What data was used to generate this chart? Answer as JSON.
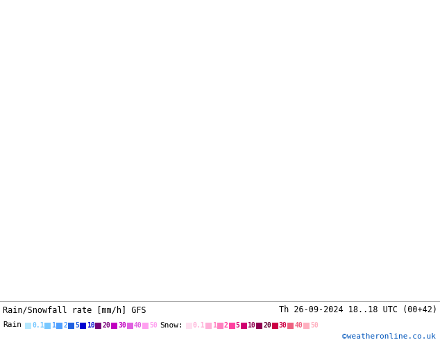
{
  "title_left": "Rain/Snowfall rate [mm/h] GFS",
  "title_right": "Th 26-09-2024 18..18 UTC (00+42)",
  "credit": "©weatheronline.co.uk",
  "rain_labels": [
    "0.1",
    "1",
    "2",
    "5",
    "10",
    "20",
    "30",
    "40",
    "50"
  ],
  "rain_swatch_colors": [
    "#b4e8ff",
    "#78c8ff",
    "#50a0ff",
    "#2060e0",
    "#0000d0",
    "#780078",
    "#c000c0",
    "#e060e0",
    "#ffa0f0"
  ],
  "rain_text_colors": [
    "#78c8ff",
    "#50a0ff",
    "#50a0ff",
    "#2060e0",
    "#0000d0",
    "#780078",
    "#c000c0",
    "#e060e0",
    "#ffa0f0"
  ],
  "snow_labels": [
    "0.1",
    "1",
    "2",
    "5",
    "10",
    "20",
    "30",
    "40",
    "50"
  ],
  "snow_swatch_colors": [
    "#ffe0f0",
    "#ffb0d8",
    "#ff80c0",
    "#ff40a0",
    "#d00070",
    "#900050",
    "#cc0044",
    "#ee6080",
    "#ffb0c0"
  ],
  "snow_text_colors": [
    "#ffb0d8",
    "#ff80c0",
    "#ff40a0",
    "#d00070",
    "#900050",
    "#600030",
    "#cc0044",
    "#ee6080",
    "#ffb0c0"
  ],
  "land_color": "#8fce56",
  "land_color2": "#b4dc78",
  "desert_color": "#dce8b4",
  "border_color": "#808080",
  "ocean_color": "#dce8f0",
  "rain_light": "#aadcff",
  "rain_med": "#60b4f0",
  "rain_dark": "#2878e0",
  "snow_light": "#ffb0d8",
  "snow_med": "#ff70b0",
  "legend_bg": "#ffffff",
  "fig_width": 6.34,
  "fig_height": 4.9,
  "dpi": 100,
  "extent": [
    20,
    120,
    0,
    62
  ]
}
